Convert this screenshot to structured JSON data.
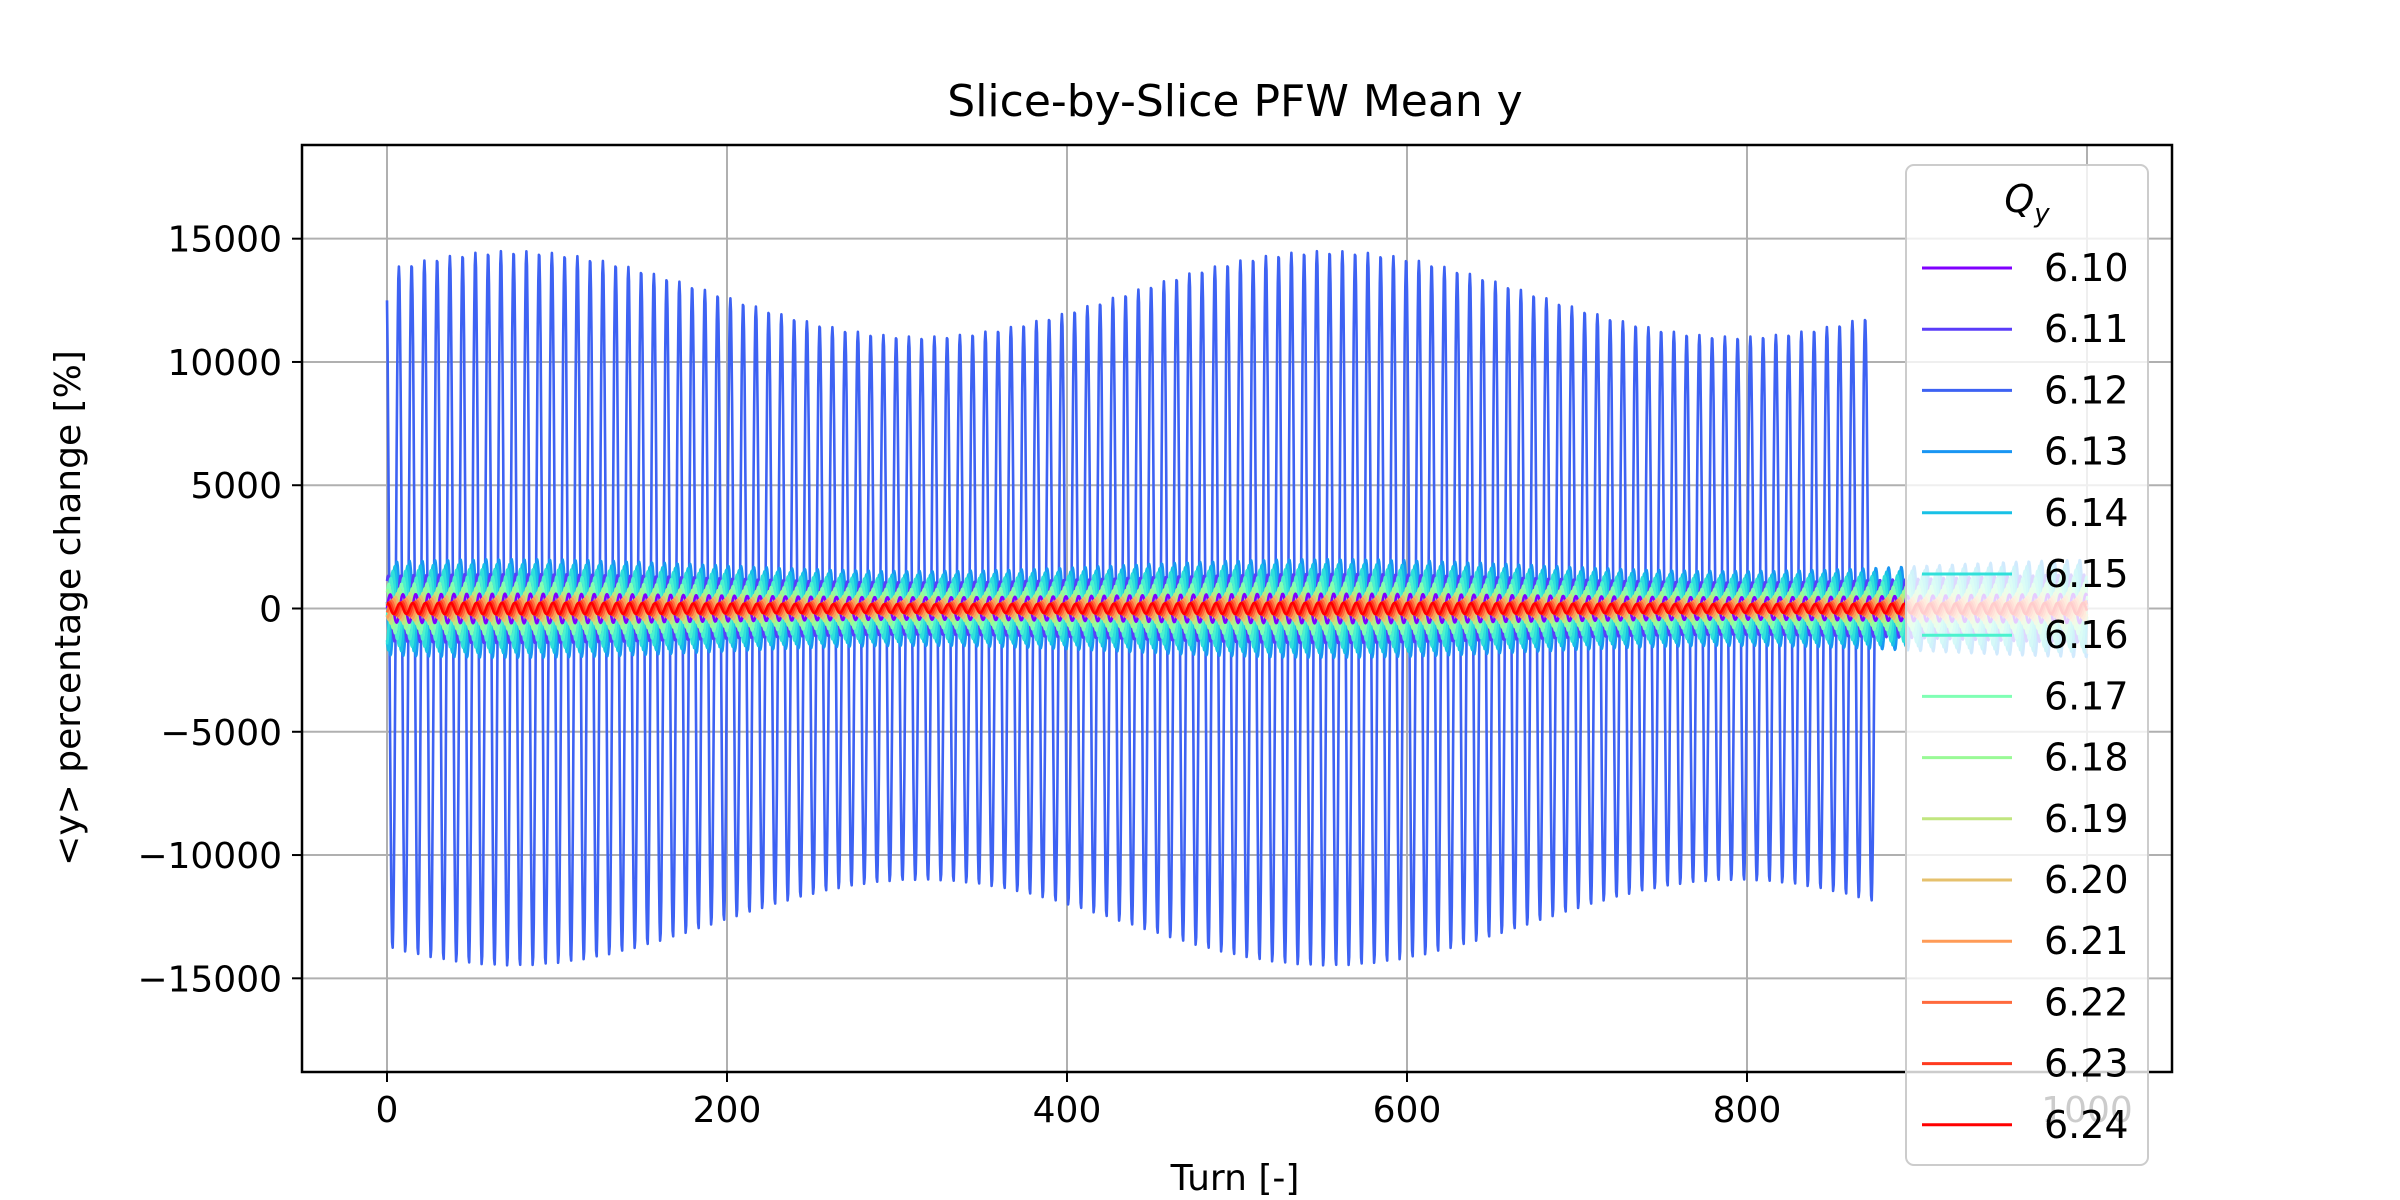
{
  "chart_data": {
    "type": "line",
    "title": "Slice-by-Slice PFW Mean y",
    "xlabel": "Turn [-]",
    "ylabel": "<y> percentage change [%]",
    "xlim": [
      -50,
      1050
    ],
    "ylim": [
      -18800,
      18800
    ],
    "xticks": [
      0,
      200,
      400,
      600,
      800,
      1000
    ],
    "xtick_labels": [
      "0",
      "200",
      "400",
      "600",
      "800",
      "1000"
    ],
    "yticks": [
      -15000,
      -10000,
      -5000,
      0,
      5000,
      10000,
      15000
    ],
    "ytick_labels": [
      "−15000",
      "−10000",
      "−5000",
      "0",
      "5000",
      "10000",
      "15000"
    ],
    "grid": true,
    "legend": {
      "title": "Q",
      "title_subscript": "y",
      "placement": "right"
    },
    "series": [
      {
        "name": "6.10",
        "color": "#8000ff",
        "amplitude": 600,
        "turns": 1000
      },
      {
        "name": "6.11",
        "color": "#5a3df9",
        "amplitude": 1400,
        "turns": 1000
      },
      {
        "name": "6.12",
        "color": "#3d62f3",
        "amplitude": 14500,
        "turns": 875
      },
      {
        "name": "6.13",
        "color": "#1996f3",
        "amplitude": 2000,
        "turns": 1000
      },
      {
        "name": "6.14",
        "color": "#18c1e6",
        "amplitude": 1800,
        "turns": 1000
      },
      {
        "name": "6.15",
        "color": "#31e0da",
        "amplitude": 1600,
        "turns": 1000
      },
      {
        "name": "6.16",
        "color": "#4cf2ce",
        "amplitude": 1300,
        "turns": 1000
      },
      {
        "name": "6.17",
        "color": "#80ffb4",
        "amplitude": 1050,
        "turns": 1000
      },
      {
        "name": "6.18",
        "color": "#99fa96",
        "amplitude": 850,
        "turns": 1000
      },
      {
        "name": "6.19",
        "color": "#c1e680",
        "amplitude": 650,
        "turns": 1000
      },
      {
        "name": "6.20",
        "color": "#e6c16d",
        "amplitude": 500,
        "turns": 1000
      },
      {
        "name": "6.21",
        "color": "#ff9b57",
        "amplitude": 400,
        "turns": 1000
      },
      {
        "name": "6.22",
        "color": "#ff6a3d",
        "amplitude": 320,
        "turns": 1000
      },
      {
        "name": "6.23",
        "color": "#ff3a1f",
        "amplitude": 270,
        "turns": 1000
      },
      {
        "name": "6.24",
        "color": "#ff0000",
        "amplitude": 230,
        "turns": 1000
      }
    ]
  }
}
